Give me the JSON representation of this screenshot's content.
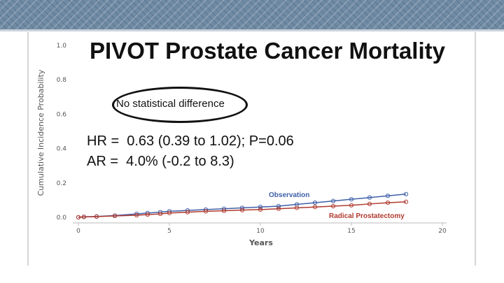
{
  "title": "PIVOT Prostate Cancer Mortality",
  "callout": "No statistical difference",
  "stats": {
    "hr": "HR =  0.63 (0.39 to 1.02); P=0.06",
    "ar": "AR =  4.0% (-0.2 to 8.3)"
  },
  "colors": {
    "observation": "#3f5fa8",
    "radical": "#b03a2e"
  },
  "chart_data": {
    "type": "line",
    "xlabel": "Years",
    "ylabel": "Cumulative Incidence Probability",
    "xlim": [
      0,
      20
    ],
    "ylim": [
      0,
      1.0
    ],
    "xticks": [
      "0",
      "5",
      "10",
      "15",
      "20"
    ],
    "yticks": [
      "0.0",
      "0.2",
      "0.4",
      "0.6",
      "0.8",
      "1.0"
    ],
    "series": [
      {
        "name": "Observation",
        "x": [
          0,
          0.3,
          1,
          2,
          3.2,
          3.8,
          4.5,
          5,
          6,
          7,
          8,
          9,
          10,
          11,
          12,
          13,
          14,
          15,
          16,
          17,
          18
        ],
        "y": [
          0.0,
          0.003,
          0.005,
          0.01,
          0.02,
          0.025,
          0.03,
          0.035,
          0.04,
          0.045,
          0.05,
          0.055,
          0.06,
          0.065,
          0.075,
          0.085,
          0.095,
          0.105,
          0.115,
          0.125,
          0.135
        ]
      },
      {
        "name": "Radical Prostatectomy",
        "x": [
          0,
          0.3,
          1,
          2,
          3.2,
          3.8,
          4.5,
          5,
          6,
          7,
          8,
          9,
          10,
          11,
          12,
          13,
          14,
          15,
          16,
          17,
          18
        ],
        "y": [
          0.0,
          0.002,
          0.004,
          0.008,
          0.012,
          0.016,
          0.02,
          0.025,
          0.03,
          0.035,
          0.038,
          0.042,
          0.045,
          0.05,
          0.055,
          0.06,
          0.065,
          0.07,
          0.078,
          0.085,
          0.09
        ]
      }
    ]
  }
}
